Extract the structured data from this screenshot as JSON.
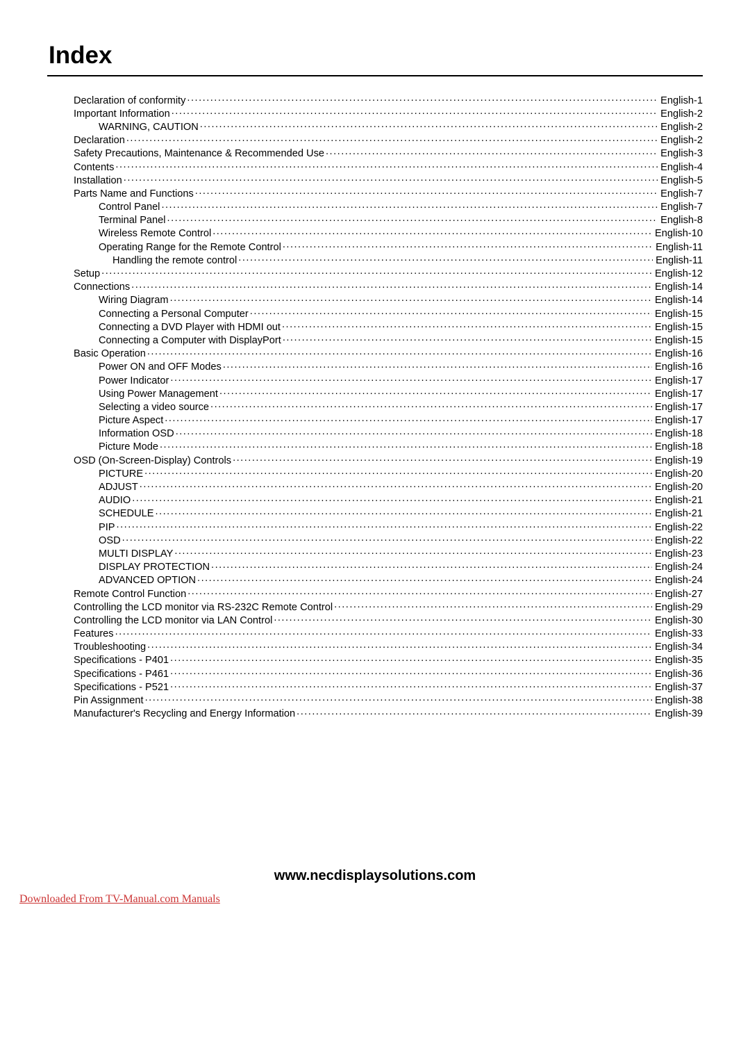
{
  "title": "Index",
  "footer_url": "www.necdisplaysolutions.com",
  "download_note": "Downloaded From TV-Manual.com Manuals",
  "toc": [
    {
      "label": "Declaration of conformity",
      "page": "English-1",
      "indent": 0
    },
    {
      "label": "Important Information",
      "page": "English-2",
      "indent": 0
    },
    {
      "label": "WARNING, CAUTION",
      "page": "English-2",
      "indent": 1
    },
    {
      "label": "Declaration",
      "page": "English-2",
      "indent": 0
    },
    {
      "label": "Safety Precautions, Maintenance & Recommended Use",
      "page": "English-3",
      "indent": 0
    },
    {
      "label": "Contents",
      "page": "English-4",
      "indent": 0
    },
    {
      "label": "Installation",
      "page": "English-5",
      "indent": 0
    },
    {
      "label": "Parts Name and Functions",
      "page": "English-7",
      "indent": 0
    },
    {
      "label": "Control Panel",
      "page": "English-7",
      "indent": 1
    },
    {
      "label": "Terminal Panel",
      "page": "English-8",
      "indent": 1
    },
    {
      "label": "Wireless Remote Control",
      "page": "English-10",
      "indent": 1
    },
    {
      "label": "Operating Range for the Remote Control",
      "page": "English-11",
      "indent": 1
    },
    {
      "label": "Handling the remote control",
      "page": "English-11",
      "indent": 2
    },
    {
      "label": "Setup",
      "page": "English-12",
      "indent": 0
    },
    {
      "label": "Connections",
      "page": "English-14",
      "indent": 0
    },
    {
      "label": "Wiring Diagram",
      "page": "English-14",
      "indent": 1
    },
    {
      "label": "Connecting a Personal Computer",
      "page": "English-15",
      "indent": 1
    },
    {
      "label": "Connecting a DVD Player with HDMI out",
      "page": "English-15",
      "indent": 1
    },
    {
      "label": "Connecting a Computer with DisplayPort",
      "page": "English-15",
      "indent": 1
    },
    {
      "label": "Basic Operation",
      "page": "English-16",
      "indent": 0
    },
    {
      "label": "Power ON and OFF Modes",
      "page": "English-16",
      "indent": 1
    },
    {
      "label": "Power Indicator",
      "page": "English-17",
      "indent": 1
    },
    {
      "label": "Using Power Management",
      "page": "English-17",
      "indent": 1
    },
    {
      "label": "Selecting a video source",
      "page": "English-17",
      "indent": 1
    },
    {
      "label": "Picture Aspect",
      "page": "English-17",
      "indent": 1
    },
    {
      "label": "Information OSD",
      "page": "English-18",
      "indent": 1
    },
    {
      "label": "Picture Mode",
      "page": "English-18",
      "indent": 1
    },
    {
      "label": "OSD (On-Screen-Display) Controls",
      "page": "English-19",
      "indent": 0
    },
    {
      "label": "PICTURE",
      "page": "English-20",
      "indent": 1
    },
    {
      "label": "ADJUST",
      "page": "English-20",
      "indent": 1
    },
    {
      "label": "AUDIO",
      "page": "English-21",
      "indent": 1
    },
    {
      "label": "SCHEDULE",
      "page": "English-21",
      "indent": 1
    },
    {
      "label": "PIP",
      "page": "English-22",
      "indent": 1
    },
    {
      "label": "OSD",
      "page": "English-22",
      "indent": 1
    },
    {
      "label": "MULTI DISPLAY",
      "page": "English-23",
      "indent": 1
    },
    {
      "label": "DISPLAY PROTECTION",
      "page": "English-24",
      "indent": 1
    },
    {
      "label": "ADVANCED OPTION",
      "page": "English-24",
      "indent": 1
    },
    {
      "label": "Remote Control Function",
      "page": "English-27",
      "indent": 0
    },
    {
      "label": "Controlling the LCD monitor via RS-232C Remote Control",
      "page": "English-29",
      "indent": 0
    },
    {
      "label": "Controlling the LCD monitor via LAN Control",
      "page": "English-30",
      "indent": 0
    },
    {
      "label": "Features",
      "page": "English-33",
      "indent": 0
    },
    {
      "label": "Troubleshooting",
      "page": "English-34",
      "indent": 0
    },
    {
      "label": "Specifications - P401",
      "page": "English-35",
      "indent": 0
    },
    {
      "label": "Specifications - P461",
      "page": "English-36",
      "indent": 0
    },
    {
      "label": "Specifications - P521",
      "page": "English-37",
      "indent": 0
    },
    {
      "label": "Pin Assignment",
      "page": "English-38",
      "indent": 0
    },
    {
      "label": "Manufacturer's Recycling and Energy Information",
      "page": "English-39",
      "indent": 0
    }
  ]
}
